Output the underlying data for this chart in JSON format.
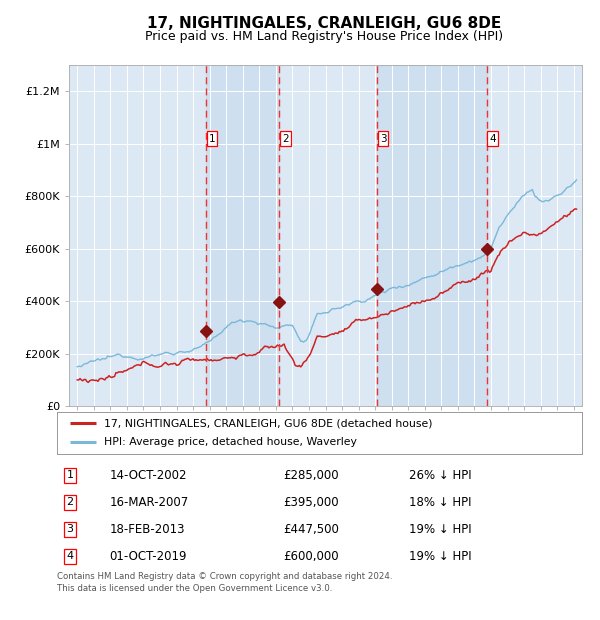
{
  "title": "17, NIGHTINGALES, CRANLEIGH, GU6 8DE",
  "subtitle": "Price paid vs. HM Land Registry's House Price Index (HPI)",
  "title_fontsize": 11,
  "subtitle_fontsize": 9,
  "background_color": "#ffffff",
  "plot_bg_color": "#dce9f5",
  "legend_line1": "17, NIGHTINGALES, CRANLEIGH, GU6 8DE (detached house)",
  "legend_line2": "HPI: Average price, detached house, Waverley",
  "footer1": "Contains HM Land Registry data © Crown copyright and database right 2024.",
  "footer2": "This data is licensed under the Open Government Licence v3.0.",
  "sales": [
    {
      "num": 1,
      "date": "14-OCT-2002",
      "price": 285000,
      "pct": "26%",
      "x_year": 2002.79
    },
    {
      "num": 2,
      "date": "16-MAR-2007",
      "price": 395000,
      "pct": "18%",
      "x_year": 2007.21
    },
    {
      "num": 3,
      "date": "18-FEB-2013",
      "price": 447500,
      "pct": "19%",
      "x_year": 2013.13
    },
    {
      "num": 4,
      "date": "01-OCT-2019",
      "price": 600000,
      "pct": "19%",
      "x_year": 2019.75
    }
  ],
  "ylim": [
    0,
    1300000
  ],
  "xlim_start": 1994.5,
  "xlim_end": 2025.5,
  "yticks": [
    0,
    200000,
    400000,
    600000,
    800000,
    1000000,
    1200000
  ],
  "ytick_labels": [
    "£0",
    "£200K",
    "£400K",
    "£600K",
    "£800K",
    "£1M",
    "£1.2M"
  ],
  "hpi_color": "#7ab8d9",
  "price_color": "#cc2222",
  "dashed_color": "#ee3333",
  "marker_color": "#881111",
  "shade_color": "#c5d9eb"
}
